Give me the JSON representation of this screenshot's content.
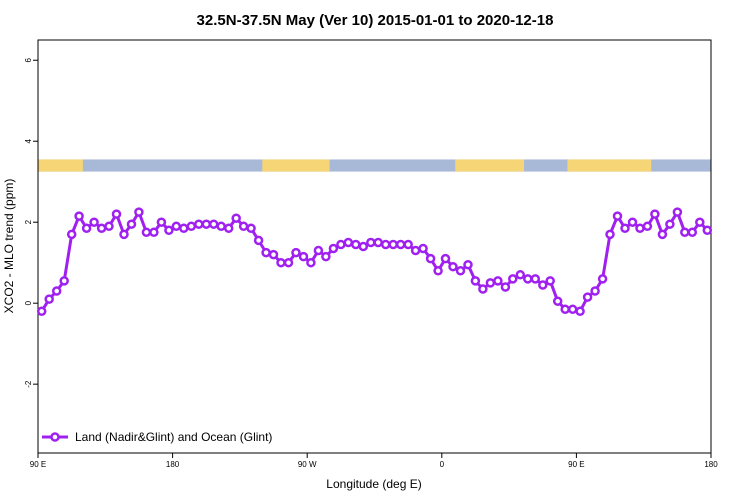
{
  "chart_data": {
    "type": "line",
    "title": "32.5N-37.5N May (Ver 10)   2015-01-01 to 2020-12-18",
    "xlabel": "Longitude (deg E)",
    "ylabel": "XCO2 - MLO trend (ppm)",
    "xlim": [
      90,
      540
    ],
    "ylim": [
      -3.7,
      6.5
    ],
    "x_ticks": [
      {
        "value": 90,
        "label": "90 E"
      },
      {
        "value": 180,
        "label": "180"
      },
      {
        "value": 270,
        "label": "90 W"
      },
      {
        "value": 360,
        "label": "0"
      },
      {
        "value": 450,
        "label": "90 E"
      },
      {
        "value": 540,
        "label": "180"
      }
    ],
    "y_ticks": [
      {
        "value": -2,
        "label": "-2"
      },
      {
        "value": 0,
        "label": "0"
      },
      {
        "value": 2,
        "label": "2"
      },
      {
        "value": 4,
        "label": "4"
      },
      {
        "value": 6,
        "label": "6"
      }
    ],
    "legend": {
      "position": "bottom-left"
    },
    "colors": {
      "series": "#a020f0",
      "land": "#f5d576",
      "ocean": "#a8b9d8"
    },
    "land_ocean_band": {
      "y_range": [
        3.25,
        3.55
      ],
      "land_segments": [
        [
          90,
          120
        ],
        [
          240,
          285
        ],
        [
          369,
          415
        ],
        [
          444,
          483
        ],
        [
          481,
          500
        ]
      ]
    },
    "series": [
      {
        "name": "Land (Nadir&Glint) and Ocean (Glint)",
        "x": [
          92.5,
          97.5,
          102.5,
          107.5,
          112.5,
          117.5,
          122.5,
          127.5,
          132.5,
          137.5,
          142.5,
          147.5,
          152.5,
          157.5,
          162.5,
          167.5,
          172.5,
          177.5,
          182.5,
          187.5,
          192.5,
          197.5,
          202.5,
          207.5,
          212.5,
          217.5,
          222.5,
          227.5,
          232.5,
          237.5,
          242.5,
          247.5,
          252.5,
          257.5,
          262.5,
          267.5,
          272.5,
          277.5,
          282.5,
          287.5,
          292.5,
          297.5,
          302.5,
          307.5,
          312.5,
          317.5,
          322.5,
          327.5,
          332.5,
          337.5,
          342.5,
          347.5,
          352.5,
          357.5,
          362.5,
          367.5,
          372.5,
          377.5,
          382.5,
          387.5,
          392.5,
          397.5,
          402.5,
          407.5,
          412.5,
          417.5,
          422.5,
          427.5,
          432.5,
          437.5,
          442.5,
          447.5,
          452.5,
          457.5,
          462.5,
          467.5,
          472.5,
          477.5,
          482.5,
          487.5,
          492.5,
          497.5,
          502.5,
          507.5,
          512.5,
          517.5,
          522.5,
          527.5,
          532.5,
          537.5
        ],
        "values": [
          -0.2,
          0.1,
          0.3,
          0.55,
          1.7,
          2.15,
          1.85,
          2.0,
          1.85,
          1.9,
          2.2,
          1.7,
          1.95,
          2.25,
          1.75,
          1.75,
          2.0,
          1.8,
          1.9,
          1.85,
          1.9,
          1.95,
          1.95,
          1.95,
          1.9,
          1.85,
          2.1,
          1.9,
          1.85,
          1.55,
          1.25,
          1.2,
          1.0,
          1.0,
          1.25,
          1.15,
          1.0,
          1.3,
          1.15,
          1.35,
          1.45,
          1.5,
          1.45,
          1.4,
          1.5,
          1.5,
          1.45,
          1.45,
          1.45,
          1.45,
          1.3,
          1.35,
          1.1,
          0.8,
          1.1,
          0.9,
          0.8,
          0.95,
          0.55,
          0.35,
          0.5,
          0.55,
          0.4,
          0.6,
          0.7,
          0.6,
          0.6,
          0.45,
          0.55,
          0.05,
          -0.15,
          -0.15,
          -0.2,
          0.15,
          0.3,
          0.6,
          1.7,
          2.15,
          1.85,
          2.0,
          1.85,
          1.9,
          2.2,
          1.7,
          1.95,
          2.25,
          1.75,
          1.75,
          2.0,
          1.8
        ]
      }
    ]
  }
}
